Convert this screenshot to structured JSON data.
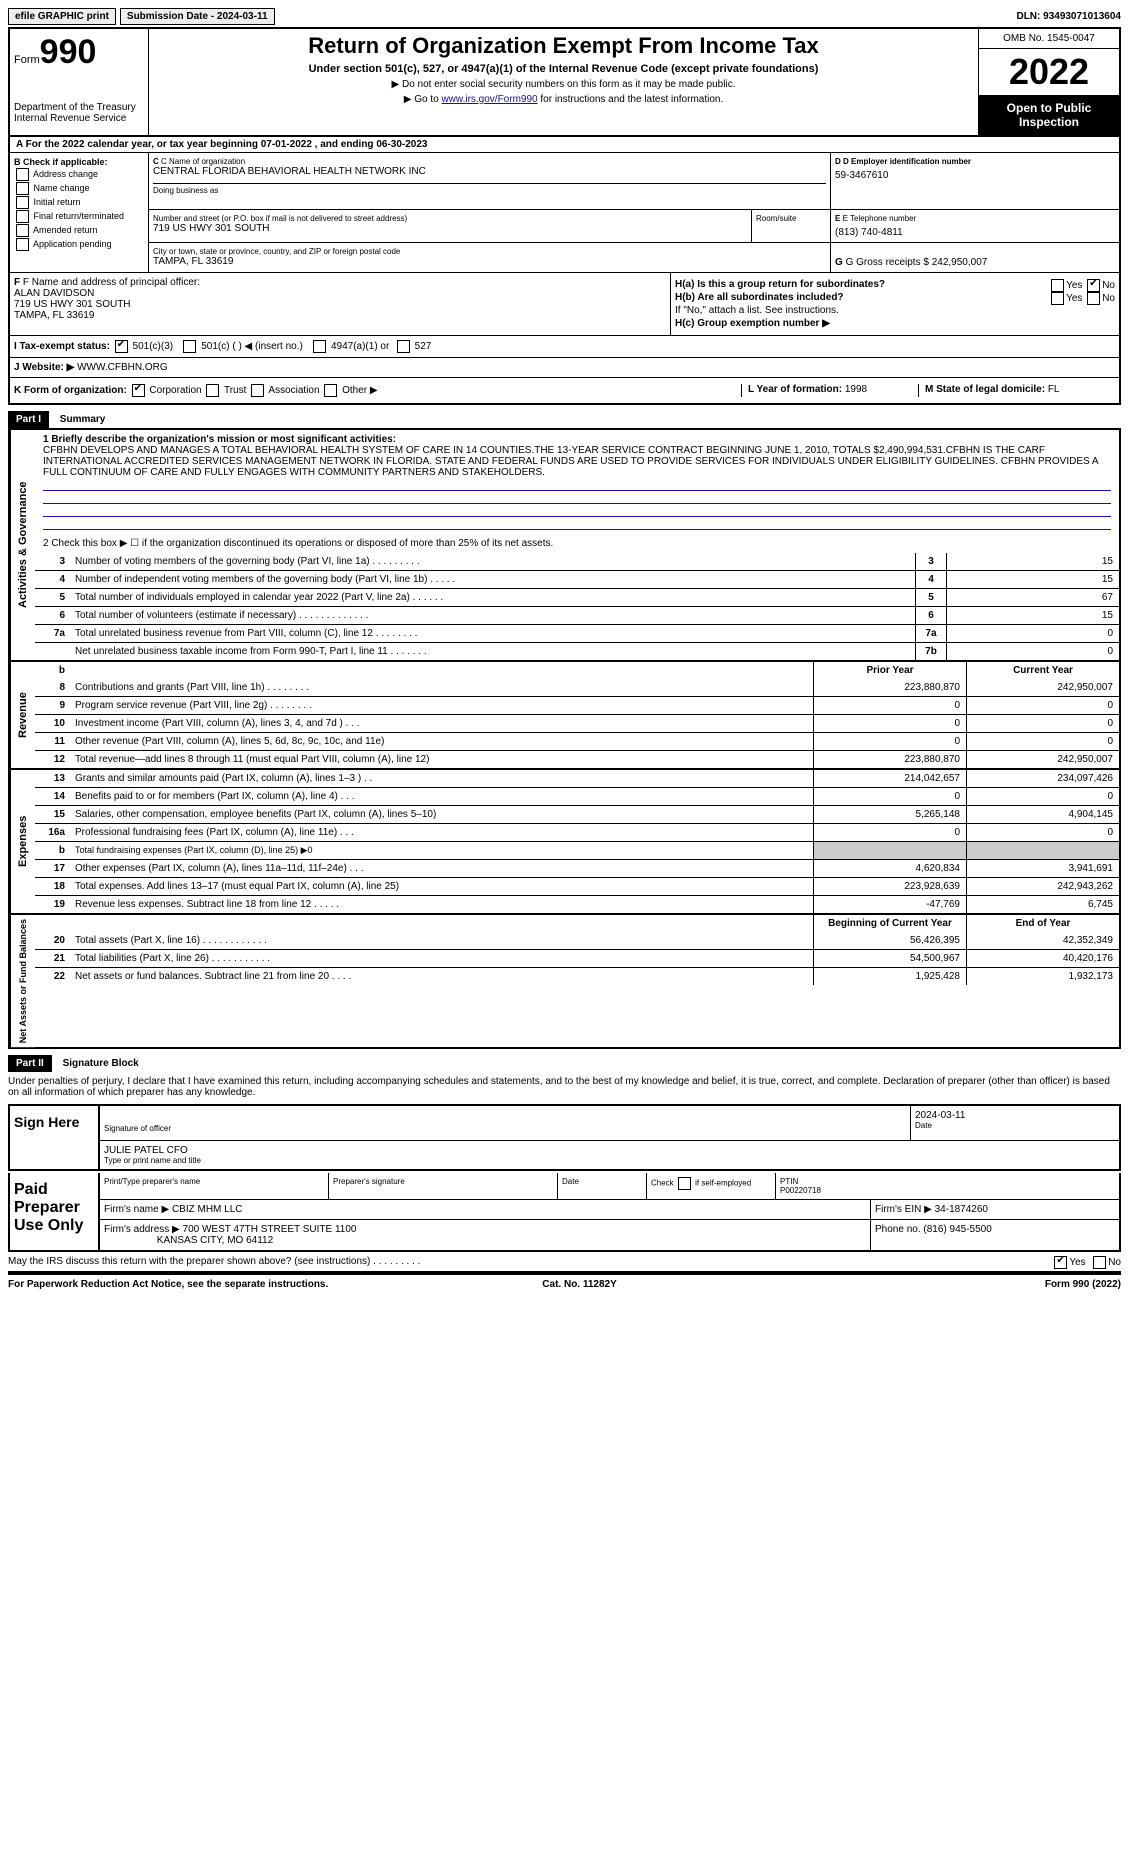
{
  "top": {
    "efile": "efile GRAPHIC print",
    "submission": "Submission Date - 2024-03-11",
    "dln": "DLN: 93493071013604"
  },
  "header": {
    "form_label": "Form",
    "form_num": "990",
    "dept": "Department of the Treasury",
    "irs": "Internal Revenue Service",
    "title": "Return of Organization Exempt From Income Tax",
    "sub": "Under section 501(c), 527, or 4947(a)(1) of the Internal Revenue Code (except private foundations)",
    "note1": "▶ Do not enter social security numbers on this form as it may be made public.",
    "note2_pre": "▶ Go to ",
    "note2_link": "www.irs.gov/Form990",
    "note2_post": " for instructions and the latest information.",
    "omb": "OMB No. 1545-0047",
    "year": "2022",
    "inspect": "Open to Public Inspection"
  },
  "a_line": "A  For the 2022 calendar year, or tax year beginning 07-01-2022     , and ending 06-30-2023",
  "b": {
    "label": "B Check if applicable:",
    "opts": [
      "Address change",
      "Name change",
      "Initial return",
      "Final return/terminated",
      "Amended return",
      "Application pending"
    ]
  },
  "c": {
    "name_label": "C Name of organization",
    "name": "CENTRAL FLORIDA BEHAVIORAL HEALTH NETWORK INC",
    "dba_label": "Doing business as",
    "addr_label": "Number and street (or P.O. box if mail is not delivered to street address)",
    "room_label": "Room/suite",
    "addr": "719 US HWY 301 SOUTH",
    "city_label": "City or town, state or province, country, and ZIP or foreign postal code",
    "city": "TAMPA, FL  33619"
  },
  "d": {
    "label": "D Employer identification number",
    "val": "59-3467610"
  },
  "e": {
    "label": "E Telephone number",
    "val": "(813) 740-4811"
  },
  "g": {
    "label": "G Gross receipts $",
    "val": "242,950,007"
  },
  "f": {
    "label": "F  Name and address of principal officer:",
    "name": "ALAN DAVIDSON",
    "addr1": "719 US HWY 301 SOUTH",
    "addr2": "TAMPA, FL  33619"
  },
  "h": {
    "a": "H(a)  Is this a group return for subordinates?",
    "b": "H(b)  Are all subordinates included?",
    "b_note": "If \"No,\" attach a list. See instructions.",
    "c": "H(c)  Group exemption number ▶"
  },
  "i": {
    "label": "I  Tax-exempt status:",
    "o1": "501(c)(3)",
    "o2": "501(c) (  ) ◀ (insert no.)",
    "o3": "4947(a)(1) or",
    "o4": "527"
  },
  "j": {
    "label": "J  Website: ▶",
    "val": "WWW.CFBHN.ORG"
  },
  "k": {
    "label": "K Form of organization:",
    "opts": [
      "Corporation",
      "Trust",
      "Association",
      "Other ▶"
    ]
  },
  "l": {
    "label": "L Year of formation:",
    "val": "1998"
  },
  "m": {
    "label": "M State of legal domicile:",
    "val": "FL"
  },
  "part1": {
    "hdr": "Part I",
    "title": "Summary",
    "line1_label": "1  Briefly describe the organization's mission or most significant activities:",
    "mission": "CFBHN DEVELOPS AND MANAGES A TOTAL BEHAVIORAL HEALTH SYSTEM OF CARE IN 14 COUNTIES.THE 13-YEAR SERVICE CONTRACT BEGINNING JUNE 1, 2010, TOTALS $2,490,994,531.CFBHN IS THE CARF INTERNATIONAL ACCREDITED SERVICES MANAGEMENT NETWORK IN FLORIDA. STATE AND FEDERAL FUNDS ARE USED TO PROVIDE SERVICES FOR INDIVIDUALS UNDER ELIGIBILITY GUIDELINES. CFBHN PROVIDES A FULL CONTINUUM OF CARE AND FULLY ENGAGES WITH COMMUNITY PARTNERS AND STAKEHOLDERS.",
    "line2": "2    Check this box ▶ ☐  if the organization discontinued its operations or disposed of more than 25% of its net assets."
  },
  "gov_rows": [
    {
      "n": "3",
      "t": "Number of voting members of the governing body (Part VI, line 1a)   .    .    .    .    .    .    .    .    .",
      "b": "3",
      "v": "15"
    },
    {
      "n": "4",
      "t": "Number of independent voting members of the governing body (Part VI, line 1b)    .    .    .    .    .",
      "b": "4",
      "v": "15"
    },
    {
      "n": "5",
      "t": "Total number of individuals employed in calendar year 2022 (Part V, line 2a)    .    .    .    .    .    .",
      "b": "5",
      "v": "67"
    },
    {
      "n": "6",
      "t": "Total number of volunteers (estimate if necessary)    .    .    .    .    .    .    .    .    .    .    .    .    .",
      "b": "6",
      "v": "15"
    },
    {
      "n": "7a",
      "t": "Total unrelated business revenue from Part VIII, column (C), line 12    .    .    .    .    .    .    .    .",
      "b": "7a",
      "v": "0"
    },
    {
      "n": "",
      "t": "Net unrelated business taxable income from Form 990-T, Part I, line 11    .    .    .    .    .    .    .",
      "b": "7b",
      "v": "0"
    }
  ],
  "sections": {
    "rev_hdr_b": "b",
    "prior": "Prior Year",
    "curr": "Current Year",
    "boy": "Beginning of Current Year",
    "eoy": "End of Year",
    "rev_label": "Revenue",
    "exp_label": "Expenses",
    "net_label": "Net Assets or Fund Balances",
    "act_label": "Activities & Governance"
  },
  "rev_rows": [
    {
      "n": "8",
      "t": "Contributions and grants (Part VIII, line 1h)    .    .    .    .    .    .    .    .",
      "p": "223,880,870",
      "c": "242,950,007"
    },
    {
      "n": "9",
      "t": "Program service revenue (Part VIII, line 2g)    .    .    .    .    .    .    .    .",
      "p": "0",
      "c": "0"
    },
    {
      "n": "10",
      "t": "Investment income (Part VIII, column (A), lines 3, 4, and 7d )    .    .    .",
      "p": "0",
      "c": "0"
    },
    {
      "n": "11",
      "t": "Other revenue (Part VIII, column (A), lines 5, 6d, 8c, 9c, 10c, and 11e)",
      "p": "0",
      "c": "0"
    },
    {
      "n": "12",
      "t": "Total revenue—add lines 8 through 11 (must equal Part VIII, column (A), line 12)",
      "p": "223,880,870",
      "c": "242,950,007"
    }
  ],
  "exp_rows": [
    {
      "n": "13",
      "t": "Grants and similar amounts paid (Part IX, column (A), lines 1–3 )    .    .",
      "p": "214,042,657",
      "c": "234,097,426"
    },
    {
      "n": "14",
      "t": "Benefits paid to or for members (Part IX, column (A), line 4)    .    .    .",
      "p": "0",
      "c": "0"
    },
    {
      "n": "15",
      "t": "Salaries, other compensation, employee benefits (Part IX, column (A), lines 5–10)",
      "p": "5,265,148",
      "c": "4,904,145"
    },
    {
      "n": "16a",
      "t": "Professional fundraising fees (Part IX, column (A), line 11e)    .    .    .",
      "p": "0",
      "c": "0"
    },
    {
      "n": "b",
      "t": "Total fundraising expenses (Part IX, column (D), line 25) ▶0",
      "p": "",
      "c": "",
      "shade": true
    },
    {
      "n": "17",
      "t": "Other expenses (Part IX, column (A), lines 11a–11d, 11f–24e)    .    .    .",
      "p": "4,620,834",
      "c": "3,941,691"
    },
    {
      "n": "18",
      "t": "Total expenses. Add lines 13–17 (must equal Part IX, column (A), line 25)",
      "p": "223,928,639",
      "c": "242,943,262"
    },
    {
      "n": "19",
      "t": "Revenue less expenses. Subtract line 18 from line 12    .    .    .    .    .",
      "p": "-47,769",
      "c": "6,745"
    }
  ],
  "net_rows": [
    {
      "n": "20",
      "t": "Total assets (Part X, line 16)    .    .    .    .    .    .    .    .    .    .    .    .",
      "p": "56,426,395",
      "c": "42,352,349"
    },
    {
      "n": "21",
      "t": "Total liabilities (Part X, line 26)    .    .    .    .    .    .    .    .    .    .    .",
      "p": "54,500,967",
      "c": "40,420,176"
    },
    {
      "n": "22",
      "t": "Net assets or fund balances. Subtract line 21 from line 20    .    .    .    .",
      "p": "1,925,428",
      "c": "1,932,173"
    }
  ],
  "part2": {
    "hdr": "Part II",
    "title": "Signature Block",
    "decl": "Under penalties of perjury, I declare that I have examined this return, including accompanying schedules and statements, and to the best of my knowledge and belief, it is true, correct, and complete. Declaration of preparer (other than officer) is based on all information of which preparer has any knowledge."
  },
  "sign": {
    "here": "Sign Here",
    "sig_officer": "Signature of officer",
    "date": "Date",
    "date_val": "2024-03-11",
    "name": "JULIE PATEL CFO",
    "name_label": "Type or print name and title"
  },
  "paid": {
    "label": "Paid Preparer Use Only",
    "h1": "Print/Type preparer's name",
    "h2": "Preparer's signature",
    "h3": "Date",
    "h4_pre": "Check",
    "h4_post": "if self-employed",
    "h5": "PTIN",
    "ptin": "P00220718",
    "firm_name_l": "Firm's name   ▶",
    "firm_name": "CBIZ MHM LLC",
    "firm_ein_l": "Firm's EIN ▶",
    "firm_ein": "34-1874260",
    "firm_addr_l": "Firm's address ▶",
    "firm_addr1": "700 WEST 47TH STREET SUITE 1100",
    "firm_addr2": "KANSAS CITY, MO  64112",
    "phone_l": "Phone no.",
    "phone": "(816) 945-5500"
  },
  "may_discuss": "May the IRS discuss this return with the preparer shown above? (see instructions)    .    .    .    .    .    .    .    .    .",
  "footer": {
    "l": "For Paperwork Reduction Act Notice, see the separate instructions.",
    "c": "Cat. No. 11282Y",
    "r": "Form 990 (2022)"
  },
  "yn": {
    "yes": "Yes",
    "no": "No"
  }
}
